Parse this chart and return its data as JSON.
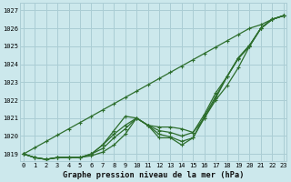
{
  "title": "Graphe pression niveau de la mer (hPa)",
  "background_color": "#cce8ec",
  "grid_color": "#aacdd4",
  "line_color": "#2d6e2d",
  "xlim": [
    -0.3,
    23.3
  ],
  "ylim": [
    1018.6,
    1027.4
  ],
  "yticks": [
    1019,
    1020,
    1021,
    1022,
    1023,
    1024,
    1025,
    1026,
    1027
  ],
  "xticks": [
    0,
    1,
    2,
    3,
    4,
    5,
    6,
    7,
    8,
    9,
    10,
    11,
    12,
    13,
    14,
    15,
    16,
    17,
    18,
    19,
    20,
    21,
    22,
    23
  ],
  "series": [
    [
      1019.0,
      1018.8,
      1018.7,
      1018.8,
      1018.8,
      1018.8,
      1018.9,
      1019.1,
      1019.5,
      1020.1,
      1021.0,
      1020.6,
      1020.3,
      1020.2,
      1020.0,
      1020.2,
      1021.0,
      1022.0,
      1022.8,
      1023.8,
      1025.0,
      1026.0,
      1026.5,
      1026.7
    ],
    [
      1019.0,
      1018.8,
      1018.7,
      1018.8,
      1018.8,
      1018.8,
      1019.0,
      1019.3,
      1019.9,
      1020.4,
      1021.0,
      1020.6,
      1020.1,
      1019.95,
      1019.7,
      1019.9,
      1021.1,
      1022.2,
      1023.3,
      1024.35,
      1025.05,
      1026.0,
      1026.5,
      1026.7
    ],
    [
      1019.0,
      1018.8,
      1018.7,
      1018.8,
      1018.8,
      1018.8,
      1019.0,
      1019.5,
      1020.1,
      1020.6,
      1021.0,
      1020.6,
      1020.5,
      1020.5,
      1020.4,
      1020.2,
      1021.2,
      1022.4,
      1023.3,
      1024.35,
      1025.05,
      1026.0,
      1026.5,
      1026.7
    ],
    [
      1019.0,
      1018.8,
      1018.7,
      1018.8,
      1018.8,
      1018.8,
      1019.0,
      1019.5,
      1020.3,
      1021.1,
      1021.0,
      1020.6,
      1019.9,
      1019.9,
      1019.5,
      1019.9,
      1021.0,
      1022.1,
      1023.3,
      1024.3,
      1025.0,
      1026.0,
      1026.5,
      1026.7
    ]
  ],
  "series_straight": [
    1019.0,
    1019.35,
    1019.7,
    1020.05,
    1020.4,
    1020.75,
    1021.1,
    1021.45,
    1021.8,
    1022.15,
    1022.5,
    1022.85,
    1023.2,
    1023.55,
    1023.9,
    1024.25,
    1024.6,
    1024.95,
    1025.3,
    1025.65,
    1026.0,
    1026.2,
    1026.5,
    1026.7
  ]
}
